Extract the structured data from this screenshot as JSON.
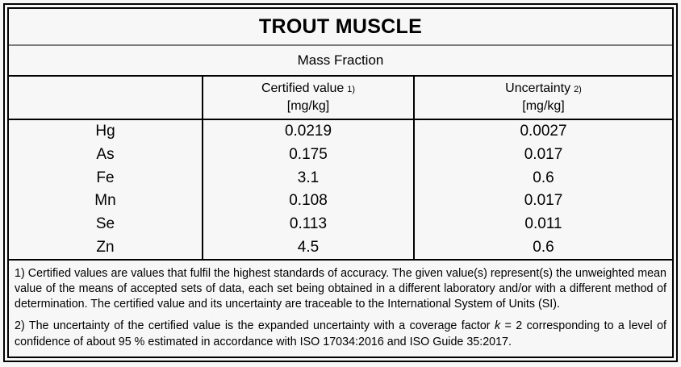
{
  "document": {
    "title": "TROUT MUSCLE",
    "section": "Mass Fraction",
    "columns": {
      "certified_label": "Certified value",
      "certified_ref": "1)",
      "certified_unit": "[mg/kg]",
      "uncertainty_label": "Uncertainty",
      "uncertainty_ref": "2)",
      "uncertainty_unit": "[mg/kg]"
    },
    "rows": [
      {
        "element": "Hg",
        "certified": "0.0219",
        "uncertainty": "0.0027"
      },
      {
        "element": "As",
        "certified": "0.175",
        "uncertainty": "0.017"
      },
      {
        "element": "Fe",
        "certified": "3.1",
        "uncertainty": "0.6"
      },
      {
        "element": "Mn",
        "certified": "0.108",
        "uncertainty": "0.017"
      },
      {
        "element": "Se",
        "certified": "0.113",
        "uncertainty": "0.011"
      },
      {
        "element": "Zn",
        "certified": "4.5",
        "uncertainty": "0.6"
      }
    ],
    "footnotes": {
      "fn1": "1) Certified values are values that fulfil the highest standards of accuracy. The given value(s) represent(s) the unweighted mean value of the means of accepted sets of data, each set being obtained in a different laboratory and/or with a different method of determination. The certified value and its uncertainty are traceable to the International System of Units (SI).",
      "fn2_before_k": "2) The uncertainty of the certified value is the expanded uncertainty with a coverage factor ",
      "fn2_k": "k",
      "fn2_after_k": " = 2 corresponding to a level of confidence of about 95 % estimated in accordance with ISO 17034:2016 and ISO Guide 35:2017."
    },
    "colors": {
      "border": "#000000",
      "title_divider": "#7d7d7d",
      "background": "#f7f7f7"
    }
  }
}
